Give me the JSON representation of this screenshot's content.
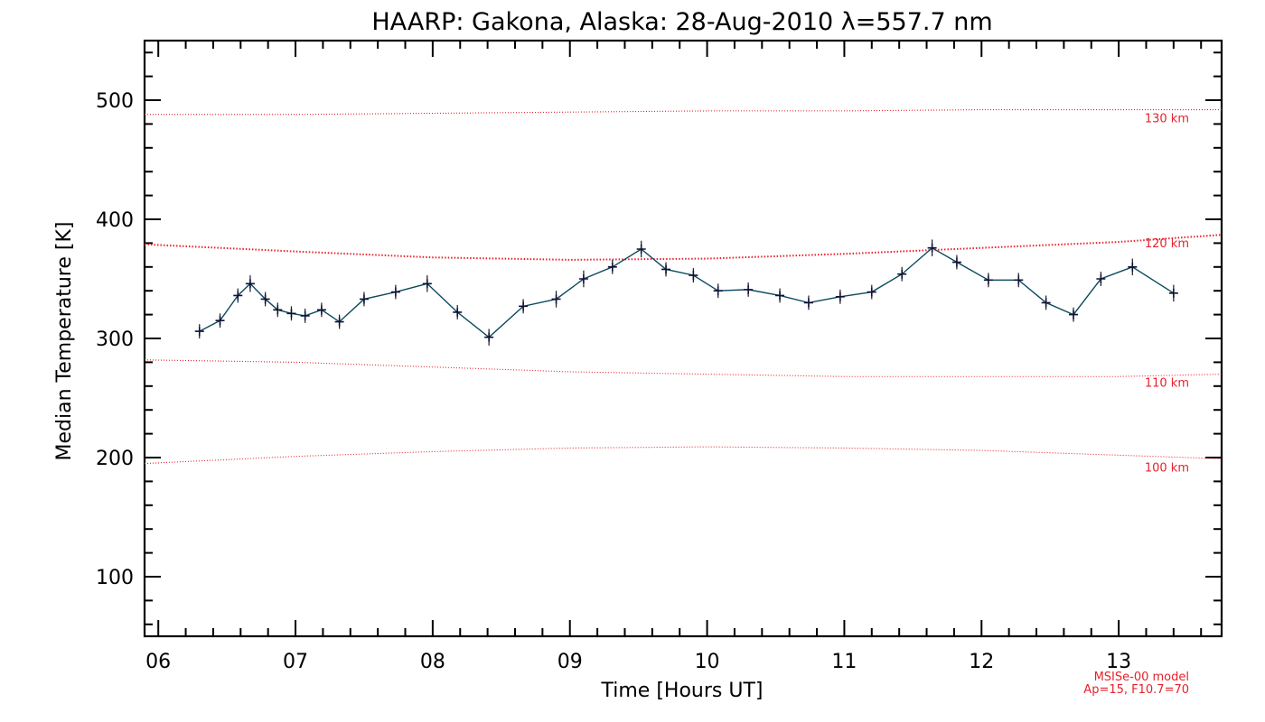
{
  "chart_data": {
    "type": "line",
    "title": "HAARP: Gakona,  Alaska: 28-Aug-2010 λ=557.7 nm",
    "xlabel": "Time [Hours UT]",
    "ylabel": "Median Temperature [K]",
    "xlim": [
      5.9,
      13.75
    ],
    "ylim": [
      50,
      550
    ],
    "x_ticks": [
      6,
      7,
      8,
      9,
      10,
      11,
      12,
      13
    ],
    "x_tick_labels": [
      "06",
      "07",
      "08",
      "09",
      "10",
      "11",
      "12",
      "13"
    ],
    "y_ticks": [
      100,
      200,
      300,
      400,
      500
    ],
    "y_tick_labels": [
      "100",
      "200",
      "300",
      "400",
      "500"
    ],
    "grid": false,
    "series": [
      {
        "color": "#0b4a5e",
        "marker": "plus-with-error-bars",
        "x": [
          6.3,
          6.45,
          6.58,
          6.67,
          6.78,
          6.87,
          6.97,
          7.07,
          7.19,
          7.32,
          7.5,
          7.73,
          7.96,
          8.18,
          8.41,
          8.66,
          8.9,
          9.1,
          9.31,
          9.52,
          9.7,
          9.9,
          10.08,
          10.3,
          10.53,
          10.74,
          10.97,
          11.2,
          11.42,
          11.64,
          11.82,
          12.05,
          12.27,
          12.47,
          12.67,
          12.87,
          13.1,
          13.4
        ],
        "y": [
          306,
          315,
          336,
          346,
          333,
          324,
          321,
          319,
          324,
          314,
          333,
          339,
          346,
          322,
          301,
          327,
          333,
          350,
          360,
          375,
          358,
          353,
          340,
          341,
          336,
          330,
          335,
          339,
          354,
          376,
          364,
          349,
          349,
          330,
          320,
          350,
          360,
          338
        ],
        "err": [
          6,
          6,
          6,
          7,
          6,
          6,
          6,
          6,
          6,
          6,
          6,
          6,
          7,
          6,
          7,
          6,
          7,
          7,
          6,
          7,
          6,
          6,
          6,
          6,
          6,
          6,
          6,
          6,
          6,
          7,
          6,
          6,
          6,
          6,
          6,
          6,
          7,
          7
        ]
      }
    ],
    "model_curves": [
      {
        "label": "130 km",
        "color": "#e8212b",
        "x": [
          5.9,
          7,
          8,
          9,
          10,
          11,
          12,
          13,
          13.75
        ],
        "y": [
          488,
          488,
          489,
          490,
          491,
          491,
          492,
          492,
          492
        ]
      },
      {
        "label": "120 km",
        "color": "#e8212b",
        "x": [
          5.9,
          7,
          8,
          9,
          10,
          11,
          12,
          13,
          13.75
        ],
        "y": [
          379,
          373,
          368,
          366,
          367,
          371,
          376,
          381,
          387
        ]
      },
      {
        "label": "110 km",
        "color": "#e8212b",
        "x": [
          5.9,
          7,
          8,
          9,
          10,
          11,
          12,
          13,
          13.75
        ],
        "y": [
          282,
          280,
          276,
          272,
          270,
          268,
          268,
          268,
          270
        ]
      },
      {
        "label": "100 km",
        "color": "#e8212b",
        "x": [
          5.9,
          7,
          8,
          9,
          10,
          11,
          12,
          13,
          13.75
        ],
        "y": [
          195,
          201,
          205,
          208,
          209,
          208,
          206,
          202,
          199
        ]
      }
    ],
    "model_note": [
      "MSISe-00 model",
      "Ap=15, F10.7=70"
    ]
  }
}
